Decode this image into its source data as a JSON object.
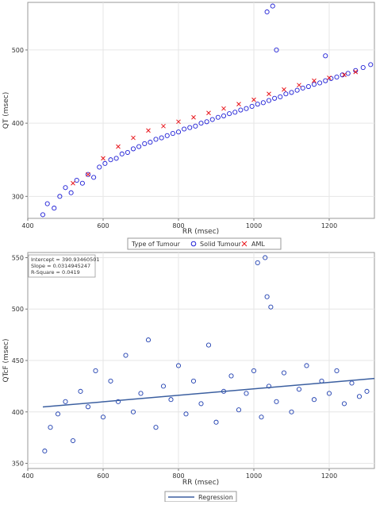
{
  "chart_data": [
    {
      "type": "scatter",
      "title": "",
      "xlabel": "RR (msec)",
      "ylabel": "QT (msec)",
      "xlim": [
        400,
        1320
      ],
      "ylim": [
        270,
        565
      ],
      "xticks": [
        400,
        600,
        800,
        1000,
        1200
      ],
      "yticks": [
        300,
        400,
        500
      ],
      "grid": true,
      "legend": {
        "placement": "bottom-center",
        "title": "Type of Tumour",
        "entries": [
          {
            "label": "Solid Tumour",
            "marker": "circle",
            "color": "#1f1fd6"
          },
          {
            "label": "AML",
            "marker": "x",
            "color": "#e8161c"
          }
        ]
      },
      "series": [
        {
          "name": "Solid Tumour",
          "marker": "circle",
          "color": "#1f1fd6",
          "points": [
            [
              440,
              275
            ],
            [
              452,
              290
            ],
            [
              470,
              284
            ],
            [
              485,
              300
            ],
            [
              500,
              312
            ],
            [
              515,
              305
            ],
            [
              530,
              322
            ],
            [
              545,
              318
            ],
            [
              560,
              330
            ],
            [
              575,
              326
            ],
            [
              590,
              340
            ],
            [
              605,
              345
            ],
            [
              620,
              350
            ],
            [
              635,
              352
            ],
            [
              650,
              358
            ],
            [
              665,
              360
            ],
            [
              680,
              365
            ],
            [
              695,
              368
            ],
            [
              710,
              372
            ],
            [
              725,
              374
            ],
            [
              740,
              378
            ],
            [
              755,
              380
            ],
            [
              770,
              383
            ],
            [
              785,
              386
            ],
            [
              800,
              388
            ],
            [
              815,
              392
            ],
            [
              830,
              394
            ],
            [
              845,
              396
            ],
            [
              860,
              400
            ],
            [
              875,
              402
            ],
            [
              890,
              405
            ],
            [
              905,
              408
            ],
            [
              920,
              410
            ],
            [
              935,
              413
            ],
            [
              950,
              415
            ],
            [
              965,
              418
            ],
            [
              980,
              420
            ],
            [
              995,
              423
            ],
            [
              1010,
              426
            ],
            [
              1025,
              428
            ],
            [
              1040,
              431
            ],
            [
              1055,
              434
            ],
            [
              1070,
              436
            ],
            [
              1085,
              440
            ],
            [
              1100,
              442
            ],
            [
              1115,
              445
            ],
            [
              1130,
              448
            ],
            [
              1145,
              450
            ],
            [
              1160,
              453
            ],
            [
              1175,
              455
            ],
            [
              1190,
              458
            ],
            [
              1205,
              461
            ],
            [
              1220,
              463
            ],
            [
              1235,
              466
            ],
            [
              1250,
              468
            ],
            [
              1270,
              472
            ],
            [
              1290,
              476
            ],
            [
              1310,
              480
            ],
            [
              1050,
              560
            ],
            [
              1035,
              552
            ],
            [
              1060,
              500
            ],
            [
              1190,
              492
            ]
          ]
        },
        {
          "name": "AML",
          "marker": "x",
          "color": "#e8161c",
          "points": [
            [
              520,
              318
            ],
            [
              560,
              330
            ],
            [
              600,
              352
            ],
            [
              640,
              368
            ],
            [
              680,
              380
            ],
            [
              720,
              390
            ],
            [
              760,
              396
            ],
            [
              800,
              402
            ],
            [
              840,
              408
            ],
            [
              880,
              414
            ],
            [
              920,
              420
            ],
            [
              960,
              426
            ],
            [
              1000,
              432
            ],
            [
              1040,
              440
            ],
            [
              1080,
              446
            ],
            [
              1120,
              452
            ],
            [
              1160,
              458
            ],
            [
              1200,
              462
            ],
            [
              1240,
              466
            ],
            [
              1270,
              470
            ]
          ]
        }
      ]
    },
    {
      "type": "scatter",
      "title": "",
      "xlabel": "RR (msec)",
      "ylabel": "QTcF (msec)",
      "xlim": [
        400,
        1320
      ],
      "ylim": [
        345,
        555
      ],
      "xticks": [
        400,
        600,
        800,
        1000,
        1200
      ],
      "yticks": [
        350,
        400,
        450,
        500,
        550
      ],
      "grid": true,
      "annotation": {
        "lines": [
          "Intercept = 390.93460501",
          "Slope = 0.0314945247",
          "R-Square =  0.0419"
        ],
        "placement": "top-left"
      },
      "regression": {
        "intercept": 390.93460501,
        "slope": 0.0314945247,
        "x_range": [
          440,
          1320
        ]
      },
      "legend": {
        "placement": "bottom-center",
        "entries": [
          {
            "label": "Regression",
            "marker": "line",
            "color": "#3b5fa0"
          }
        ]
      },
      "series": [
        {
          "name": "",
          "marker": "circle",
          "color": "#1f3fb0",
          "points": [
            [
              445,
              362
            ],
            [
              460,
              385
            ],
            [
              480,
              398
            ],
            [
              500,
              410
            ],
            [
              520,
              372
            ],
            [
              540,
              420
            ],
            [
              560,
              405
            ],
            [
              580,
              440
            ],
            [
              600,
              395
            ],
            [
              620,
              430
            ],
            [
              640,
              410
            ],
            [
              660,
              455
            ],
            [
              680,
              400
            ],
            [
              700,
              418
            ],
            [
              720,
              470
            ],
            [
              740,
              385
            ],
            [
              760,
              425
            ],
            [
              780,
              412
            ],
            [
              800,
              445
            ],
            [
              820,
              398
            ],
            [
              840,
              430
            ],
            [
              860,
              408
            ],
            [
              880,
              465
            ],
            [
              900,
              390
            ],
            [
              920,
              420
            ],
            [
              940,
              435
            ],
            [
              960,
              402
            ],
            [
              980,
              418
            ],
            [
              1000,
              440
            ],
            [
              1020,
              395
            ],
            [
              1040,
              425
            ],
            [
              1060,
              410
            ],
            [
              1080,
              438
            ],
            [
              1100,
              400
            ],
            [
              1120,
              422
            ],
            [
              1140,
              445
            ],
            [
              1160,
              412
            ],
            [
              1180,
              430
            ],
            [
              1200,
              418
            ],
            [
              1220,
              440
            ],
            [
              1240,
              408
            ],
            [
              1260,
              428
            ],
            [
              1280,
              415
            ],
            [
              1300,
              420
            ],
            [
              1030,
              550
            ],
            [
              1010,
              545
            ],
            [
              1035,
              512
            ],
            [
              1045,
              502
            ]
          ]
        }
      ]
    }
  ]
}
